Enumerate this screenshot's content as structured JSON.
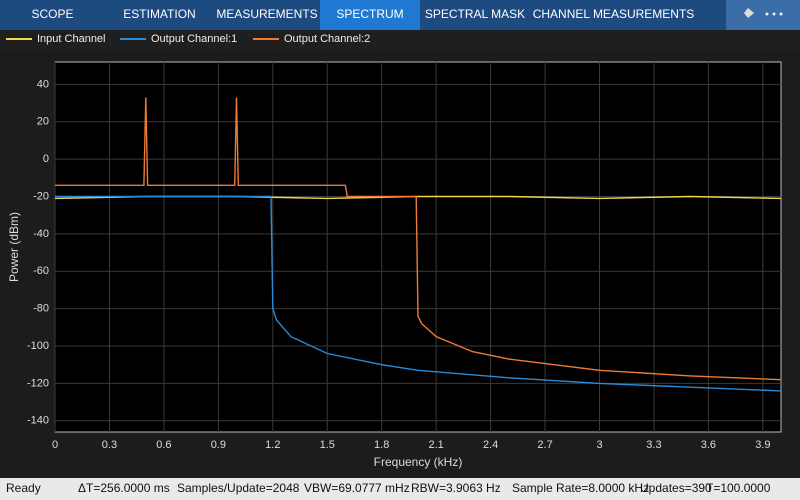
{
  "toolbar": {
    "tabs": [
      "SCOPE",
      "ESTIMATION",
      "MEASUREMENTS",
      "SPECTRUM",
      "SPECTRAL MASK",
      "CHANNEL MEASUREMENTS"
    ],
    "active": 3
  },
  "chart_data": {
    "type": "line",
    "xlabel": "Frequency (kHz)",
    "ylabel": "Power (dBm)",
    "xlim": [
      0,
      4
    ],
    "ylim": [
      -146,
      52
    ],
    "xticks": [
      0,
      0.3,
      0.6,
      0.9,
      1.2,
      1.5,
      1.8,
      2.1,
      2.4,
      2.7,
      3,
      3.3,
      3.6,
      3.9
    ],
    "yticks": [
      -140,
      -120,
      -100,
      -80,
      -60,
      -40,
      -20,
      0,
      20,
      40
    ],
    "grid": true,
    "series": [
      {
        "name": "Input Channel",
        "color": "#f2d74e",
        "x": [
          0,
          0.5,
          1,
          1.5,
          2,
          2.5,
          3,
          3.5,
          4
        ],
        "values": [
          -21,
          -20,
          -20,
          -21,
          -20,
          -20,
          -21,
          -20,
          -21
        ]
      },
      {
        "name": "Output Channel:1",
        "color": "#2a8bd8",
        "x": [
          0,
          1.19,
          1.2,
          1.22,
          1.3,
          1.5,
          1.8,
          2,
          2.5,
          3,
          3.5,
          4
        ],
        "values": [
          -20,
          -20,
          -80,
          -86,
          -95,
          -104,
          -110,
          -113,
          -117,
          -120,
          -122,
          -124
        ]
      },
      {
        "name": "Output Channel:2",
        "color": "#ee7a33",
        "x": [
          0,
          0.49,
          0.5,
          0.51,
          0.99,
          1,
          1.01,
          1.6,
          1.61,
          1.99,
          2,
          2.02,
          2.1,
          2.3,
          2.5,
          3,
          3.5,
          4
        ],
        "values": [
          -14,
          -14,
          33,
          -14,
          -14,
          33,
          -14,
          -14,
          -20,
          -20,
          -84,
          -88,
          -95,
          -103,
          -107,
          -113,
          -116,
          -118
        ]
      }
    ]
  },
  "status": [
    "Ready",
    "ΔT=256.0000 ms",
    "Samples/Update=2048",
    "VBW=69.0777 mHz",
    "RBW=3.9063 Hz",
    "Sample Rate=8.0000 kHz",
    "Updates=390",
    "T=100.0000"
  ]
}
